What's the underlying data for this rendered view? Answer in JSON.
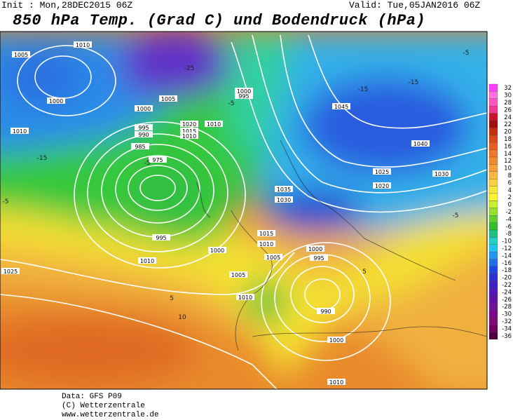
{
  "header": {
    "init": "Init : Mon,28DEC2015 06Z",
    "valid": "Valid: Tue,05JAN2016 06Z",
    "title": "850 hPa Temp. (Grad C) und Bodendruck (hPa)"
  },
  "scale": {
    "values": [
      32,
      30,
      28,
      26,
      24,
      22,
      20,
      18,
      16,
      14,
      12,
      10,
      8,
      6,
      4,
      2,
      0,
      -2,
      -4,
      -6,
      -8,
      -10,
      -12,
      -14,
      -16,
      -18,
      -20,
      -22,
      -24,
      -26,
      -28,
      -30,
      -32,
      -34,
      -36
    ],
    "colors": [
      "#ff40ff",
      "#ff70e0",
      "#ff58c0",
      "#f03a90",
      "#c81830",
      "#a01010",
      "#c03010",
      "#d84818",
      "#e86020",
      "#f07828",
      "#f08c30",
      "#f8a038",
      "#f8b840",
      "#f8d040",
      "#f8e838",
      "#f8f830",
      "#c8f030",
      "#98e030",
      "#60d030",
      "#30c030",
      "#20c080",
      "#20d0c0",
      "#20c0f0",
      "#2098f0",
      "#2070e8",
      "#2048e0",
      "#3030d0",
      "#4020c0",
      "#5018b8",
      "#6010a8",
      "#701098",
      "#780888",
      "#800878",
      "#700060",
      "#500040"
    ]
  },
  "map": {
    "isobar_labels": [
      "1010",
      "1005",
      "1000",
      "1010",
      "1005",
      "1000",
      "995",
      "990",
      "985",
      "975",
      "1020",
      "1015",
      "1010",
      "1010",
      "995",
      "1000",
      "1045",
      "1040",
      "1035",
      "1030",
      "1025",
      "1020",
      "1030",
      "1015",
      "1010",
      "1005",
      "1000",
      "995",
      "990",
      "1000",
      "1010",
      "1005",
      "1010",
      "1025",
      "995",
      "1000",
      "1010"
    ],
    "temperature_labels": [
      "-5",
      "-15",
      "-25",
      "-15",
      "-5",
      "-5",
      "5",
      "10",
      "-5",
      "-15",
      "-5",
      "5"
    ]
  },
  "footer": {
    "data": "Data: GFS P09",
    "copyright": "(C) Wetterzentrale",
    "url": "www.wetterzentrale.de"
  }
}
